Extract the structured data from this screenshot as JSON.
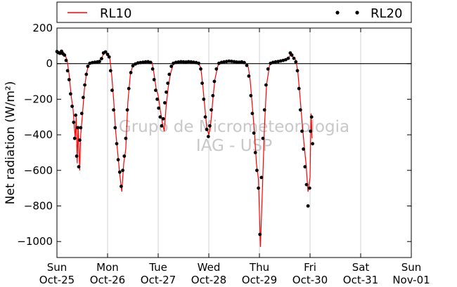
{
  "chart_data": {
    "type": "line",
    "title": "",
    "ylabel": "Net radiation (W/m²)",
    "xlabel": "",
    "xlim": [
      0,
      7
    ],
    "ylim": [
      -1090,
      200
    ],
    "yticks": [
      200,
      0,
      -200,
      -400,
      -600,
      -800,
      -1000
    ],
    "ytick_labels": [
      "200",
      "0",
      "−200",
      "−400",
      "−600",
      "−800",
      "−1000"
    ],
    "xticks": [
      {
        "x": 0,
        "day": "Sun",
        "date": "Oct-25"
      },
      {
        "x": 1,
        "day": "Mon",
        "date": "Oct-26"
      },
      {
        "x": 2,
        "day": "Tue",
        "date": "Oct-27"
      },
      {
        "x": 3,
        "day": "Wed",
        "date": "Oct-28"
      },
      {
        "x": 4,
        "day": "Thu",
        "date": "Oct-29"
      },
      {
        "x": 5,
        "day": "Fri",
        "date": "Oct-30"
      },
      {
        "x": 6,
        "day": "Sat",
        "date": "Oct-31"
      },
      {
        "x": 7,
        "day": "Sun",
        "date": "Nov-01"
      }
    ],
    "grid": "vertical",
    "zero_line": true,
    "legend": {
      "placement": "top",
      "entries": [
        "RL10",
        "RL20"
      ]
    },
    "watermark": [
      "Grupo de Micrometeorologia",
      "IAG - USP"
    ],
    "series": [
      {
        "name": "RL10",
        "style": "line",
        "color": "#ff0000",
        "points": [
          [
            0.0,
            65
          ],
          [
            0.04,
            60
          ],
          [
            0.08,
            55
          ],
          [
            0.12,
            68
          ],
          [
            0.16,
            50
          ],
          [
            0.2,
            20
          ],
          [
            0.24,
            -60
          ],
          [
            0.28,
            -180
          ],
          [
            0.32,
            -260
          ],
          [
            0.36,
            -420
          ],
          [
            0.38,
            -300
          ],
          [
            0.4,
            -560
          ],
          [
            0.42,
            -350
          ],
          [
            0.45,
            -600
          ],
          [
            0.47,
            -400
          ],
          [
            0.5,
            -300
          ],
          [
            0.54,
            -150
          ],
          [
            0.58,
            -60
          ],
          [
            0.62,
            -10
          ],
          [
            0.68,
            5
          ],
          [
            0.75,
            10
          ],
          [
            0.82,
            10
          ],
          [
            0.88,
            30
          ],
          [
            0.94,
            65
          ],
          [
            1.0,
            55
          ],
          [
            1.04,
            40
          ],
          [
            1.08,
            -60
          ],
          [
            1.12,
            -200
          ],
          [
            1.16,
            -380
          ],
          [
            1.2,
            -500
          ],
          [
            1.24,
            -620
          ],
          [
            1.28,
            -720
          ],
          [
            1.32,
            -560
          ],
          [
            1.36,
            -480
          ],
          [
            1.4,
            -220
          ],
          [
            1.45,
            -60
          ],
          [
            1.5,
            -10
          ],
          [
            1.56,
            0
          ],
          [
            1.62,
            5
          ],
          [
            1.68,
            8
          ],
          [
            1.75,
            10
          ],
          [
            1.82,
            12
          ],
          [
            1.88,
            5
          ],
          [
            1.92,
            -60
          ],
          [
            1.96,
            -140
          ],
          [
            2.0,
            -180
          ],
          [
            2.04,
            -260
          ],
          [
            2.08,
            -330
          ],
          [
            2.12,
            -380
          ],
          [
            2.16,
            -230
          ],
          [
            2.2,
            -130
          ],
          [
            2.24,
            -60
          ],
          [
            2.3,
            0
          ],
          [
            2.36,
            8
          ],
          [
            2.42,
            10
          ],
          [
            2.48,
            10
          ],
          [
            2.54,
            8
          ],
          [
            2.6,
            12
          ],
          [
            2.66,
            10
          ],
          [
            2.72,
            8
          ],
          [
            2.78,
            5
          ],
          [
            2.84,
            -20
          ],
          [
            2.88,
            -120
          ],
          [
            2.92,
            -240
          ],
          [
            2.96,
            -360
          ],
          [
            3.0,
            -400
          ],
          [
            3.04,
            -330
          ],
          [
            3.08,
            -200
          ],
          [
            3.12,
            -90
          ],
          [
            3.18,
            -10
          ],
          [
            3.24,
            5
          ],
          [
            3.3,
            10
          ],
          [
            3.36,
            12
          ],
          [
            3.42,
            15
          ],
          [
            3.48,
            12
          ],
          [
            3.54,
            10
          ],
          [
            3.6,
            8
          ],
          [
            3.66,
            10
          ],
          [
            3.72,
            5
          ],
          [
            3.78,
            -20
          ],
          [
            3.82,
            -100
          ],
          [
            3.86,
            -240
          ],
          [
            3.9,
            -380
          ],
          [
            3.94,
            -560
          ],
          [
            3.98,
            -650
          ],
          [
            4.02,
            -1030
          ],
          [
            4.06,
            -700
          ],
          [
            4.1,
            -350
          ],
          [
            4.14,
            -120
          ],
          [
            4.2,
            -10
          ],
          [
            4.26,
            5
          ],
          [
            4.32,
            10
          ],
          [
            4.38,
            12
          ],
          [
            4.44,
            15
          ],
          [
            4.5,
            20
          ],
          [
            4.56,
            25
          ],
          [
            4.62,
            55
          ],
          [
            4.66,
            40
          ],
          [
            4.72,
            20
          ],
          [
            4.76,
            -50
          ],
          [
            4.8,
            -180
          ],
          [
            4.84,
            -320
          ],
          [
            4.88,
            -450
          ],
          [
            4.92,
            -560
          ],
          [
            4.96,
            -720
          ],
          [
            5.0,
            -640
          ],
          [
            5.02,
            -280
          ],
          [
            5.04,
            -420
          ]
        ]
      },
      {
        "name": "RL20",
        "style": "dots",
        "color": "#000000",
        "points": [
          [
            0.0,
            68
          ],
          [
            0.03,
            62
          ],
          [
            0.06,
            58
          ],
          [
            0.09,
            70
          ],
          [
            0.12,
            55
          ],
          [
            0.15,
            48
          ],
          [
            0.18,
            18
          ],
          [
            0.21,
            -40
          ],
          [
            0.24,
            -90
          ],
          [
            0.27,
            -170
          ],
          [
            0.3,
            -240
          ],
          [
            0.33,
            -330
          ],
          [
            0.35,
            -420
          ],
          [
            0.37,
            -290
          ],
          [
            0.39,
            -520
          ],
          [
            0.41,
            -360
          ],
          [
            0.43,
            -580
          ],
          [
            0.45,
            -430
          ],
          [
            0.47,
            -360
          ],
          [
            0.49,
            -280
          ],
          [
            0.52,
            -190
          ],
          [
            0.55,
            -120
          ],
          [
            0.58,
            -60
          ],
          [
            0.61,
            -15
          ],
          [
            0.65,
            2
          ],
          [
            0.7,
            6
          ],
          [
            0.75,
            8
          ],
          [
            0.8,
            10
          ],
          [
            0.84,
            12
          ],
          [
            0.88,
            28
          ],
          [
            0.92,
            60
          ],
          [
            0.96,
            66
          ],
          [
            1.0,
            52
          ],
          [
            1.03,
            38
          ],
          [
            1.06,
            -40
          ],
          [
            1.09,
            -150
          ],
          [
            1.12,
            -260
          ],
          [
            1.15,
            -360
          ],
          [
            1.18,
            -450
          ],
          [
            1.21,
            -540
          ],
          [
            1.24,
            -610
          ],
          [
            1.27,
            -690
          ],
          [
            1.3,
            -600
          ],
          [
            1.33,
            -520
          ],
          [
            1.36,
            -420
          ],
          [
            1.39,
            -260
          ],
          [
            1.42,
            -140
          ],
          [
            1.46,
            -50
          ],
          [
            1.5,
            -12
          ],
          [
            1.55,
            -2
          ],
          [
            1.6,
            4
          ],
          [
            1.65,
            6
          ],
          [
            1.7,
            8
          ],
          [
            1.75,
            10
          ],
          [
            1.8,
            11
          ],
          [
            1.85,
            7
          ],
          [
            1.89,
            -30
          ],
          [
            1.92,
            -90
          ],
          [
            1.95,
            -150
          ],
          [
            1.98,
            -200
          ],
          [
            2.01,
            -250
          ],
          [
            2.04,
            -300
          ],
          [
            2.07,
            -350
          ],
          [
            2.1,
            -310
          ],
          [
            2.13,
            -220
          ],
          [
            2.16,
            -160
          ],
          [
            2.19,
            -110
          ],
          [
            2.22,
            -60
          ],
          [
            2.26,
            -15
          ],
          [
            2.3,
            2
          ],
          [
            2.35,
            7
          ],
          [
            2.4,
            9
          ],
          [
            2.45,
            11
          ],
          [
            2.5,
            10
          ],
          [
            2.55,
            9
          ],
          [
            2.6,
            11
          ],
          [
            2.65,
            10
          ],
          [
            2.7,
            8
          ],
          [
            2.75,
            6
          ],
          [
            2.8,
            2
          ],
          [
            2.84,
            -30
          ],
          [
            2.87,
            -110
          ],
          [
            2.9,
            -200
          ],
          [
            2.93,
            -300
          ],
          [
            2.96,
            -370
          ],
          [
            2.99,
            -410
          ],
          [
            3.02,
            -350
          ],
          [
            3.05,
            -260
          ],
          [
            3.08,
            -180
          ],
          [
            3.11,
            -100
          ],
          [
            3.15,
            -30
          ],
          [
            3.2,
            2
          ],
          [
            3.25,
            7
          ],
          [
            3.3,
            10
          ],
          [
            3.35,
            12
          ],
          [
            3.4,
            14
          ],
          [
            3.45,
            13
          ],
          [
            3.5,
            11
          ],
          [
            3.55,
            9
          ],
          [
            3.6,
            8
          ],
          [
            3.65,
            10
          ],
          [
            3.7,
            6
          ],
          [
            3.75,
            -10
          ],
          [
            3.79,
            -70
          ],
          [
            3.83,
            -180
          ],
          [
            3.86,
            -280
          ],
          [
            3.89,
            -390
          ],
          [
            3.92,
            -500
          ],
          [
            3.95,
            -600
          ],
          [
            3.98,
            -700
          ],
          [
            4.01,
            -960
          ],
          [
            4.04,
            -640
          ],
          [
            4.07,
            -420
          ],
          [
            4.1,
            -260
          ],
          [
            4.13,
            -120
          ],
          [
            4.17,
            -30
          ],
          [
            4.22,
            2
          ],
          [
            4.27,
            7
          ],
          [
            4.32,
            10
          ],
          [
            4.37,
            12
          ],
          [
            4.42,
            15
          ],
          [
            4.47,
            18
          ],
          [
            4.52,
            22
          ],
          [
            4.57,
            30
          ],
          [
            4.61,
            60
          ],
          [
            4.64,
            48
          ],
          [
            4.68,
            30
          ],
          [
            4.72,
            10
          ],
          [
            4.75,
            -40
          ],
          [
            4.78,
            -140
          ],
          [
            4.81,
            -260
          ],
          [
            4.84,
            -380
          ],
          [
            4.87,
            -480
          ],
          [
            4.9,
            -580
          ],
          [
            4.93,
            -680
          ],
          [
            4.96,
            -800
          ],
          [
            4.99,
            -700
          ],
          [
            5.01,
            -380
          ],
          [
            5.03,
            -300
          ],
          [
            5.05,
            -450
          ]
        ]
      }
    ]
  }
}
